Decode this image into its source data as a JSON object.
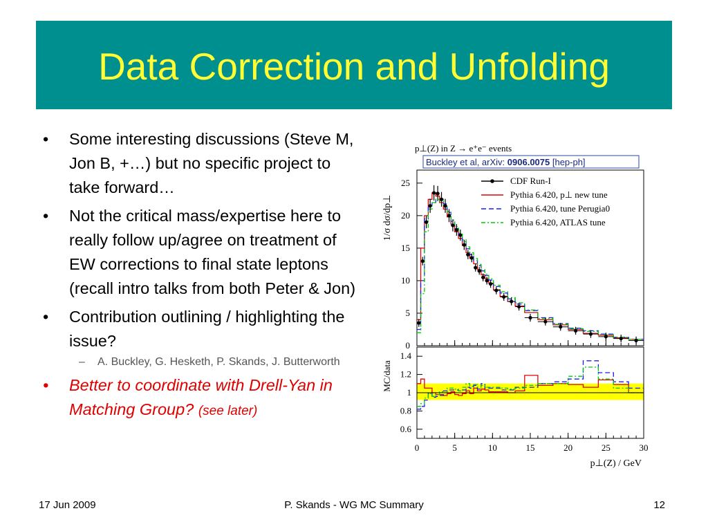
{
  "slide": {
    "title": "Data Correction and Unfolding",
    "bullets": [
      "Some interesting discussions (Steve M, Jon B, +…) but no specific project to take forward…",
      "Not the critical mass/expertise here to really follow up/agree on treatment of EW corrections to final state leptons (recall intro talks from both Peter & Jon)",
      "Contribution outlining / highlighting the issue?"
    ],
    "sub_bullet": "A. Buckley, G. Hesketh, P. Skands, J. Butterworth",
    "red_bullet": "Better to coordinate with Drell-Yan in Matching Group?",
    "red_bullet_note": "(see later)",
    "bullet_char": "•",
    "dash_char": "–"
  },
  "footer": {
    "date": "17 Jun 2009",
    "center": "P. Skands - WG MC Summary",
    "page": "12"
  },
  "colors": {
    "title_bg": "#008f8f",
    "title_text": "#ffff33",
    "red_text": "#e00000",
    "uncertainty_band": "#ffff00"
  },
  "chart_data": {
    "type": "line",
    "title": "p⊥(Z) in Z → e⁺e⁻ events",
    "annotation": {
      "prefix": "Buckley et al, arXiv: ",
      "bold": "0906.0075",
      "suffix": " [hep-ph]"
    },
    "xlabel": "p⊥(Z) / GeV",
    "ylabel_top": "1/σ dσ/dp⊥",
    "ylabel_bottom": "MC/data",
    "xlim": [
      0,
      30
    ],
    "ylim_top": [
      0,
      27
    ],
    "ylim_bottom": [
      0.5,
      1.5
    ],
    "x_ticks": [
      "0",
      "5",
      "10",
      "15",
      "20",
      "25",
      "30"
    ],
    "y_ticks_top": [
      "0",
      "5",
      "10",
      "15",
      "20",
      "25"
    ],
    "y_ticks_bottom": [
      "0.6",
      "0.8",
      "1",
      "1.2",
      "1.4"
    ],
    "legend": [
      "CDF Run-I",
      "Pythia 6.420, p⊥ new tune",
      "Pythia 6.420, tune Perugia0",
      "Pythia 6.420, ATLAS tune"
    ],
    "legend_position": "top-right",
    "x": [
      0.25,
      0.75,
      1.25,
      1.75,
      2.25,
      2.75,
      3.25,
      3.75,
      4.25,
      4.75,
      5.25,
      5.75,
      6.25,
      6.75,
      7.25,
      7.75,
      8.25,
      8.75,
      9.25,
      9.75,
      10.5,
      11.5,
      12.5,
      13.5,
      15,
      17,
      19,
      21,
      23,
      25,
      27,
      29
    ],
    "series": [
      {
        "name": "CDF Run-I",
        "color": "#000000",
        "style": "points",
        "values": [
          3.5,
          13.0,
          19.0,
          21.5,
          23.5,
          23.4,
          22.5,
          21.5,
          20.0,
          18.5,
          17.8,
          17.0,
          15.5,
          14.0,
          13.5,
          12.0,
          11.5,
          10.5,
          10.0,
          9.5,
          8.5,
          7.5,
          6.8,
          6.0,
          4.3,
          3.7,
          2.9,
          2.3,
          1.8,
          1.4,
          1.1,
          0.8
        ]
      },
      {
        "name": "Pythia 6.420, p⊥ new tune",
        "color": "#e00000",
        "style": "solid",
        "values": [
          4.0,
          15.0,
          20.0,
          22.5,
          23.5,
          23.0,
          22.0,
          21.0,
          19.8,
          18.7,
          17.5,
          16.5,
          15.4,
          14.3,
          13.4,
          12.6,
          11.7,
          10.9,
          10.3,
          9.6,
          8.6,
          7.6,
          6.8,
          6.1,
          5.1,
          4.0,
          3.2,
          2.5,
          1.9,
          1.6,
          1.2,
          1.0
        ],
        "ratio": [
          1.1,
          1.15,
          1.05,
          1.05,
          1.0,
          0.98,
          0.98,
          0.97,
          0.99,
          1.01,
          0.98,
          0.97,
          0.99,
          1.02,
          0.99,
          1.05,
          1.02,
          1.04,
          1.03,
          1.01,
          1.01,
          1.01,
          1.0,
          1.02,
          1.19,
          1.08,
          1.1,
          1.09,
          1.06,
          1.14,
          1.09,
          1.0
        ]
      },
      {
        "name": "Pythia 6.420, tune Perugia0",
        "color": "#1a1aff",
        "style": "dashed",
        "values": [
          2.5,
          10.0,
          19.5,
          21.5,
          22.0,
          22.5,
          22.5,
          21.8,
          20.5,
          19.1,
          18.0,
          17.0,
          16.0,
          14.9,
          14.0,
          13.1,
          12.3,
          11.5,
          10.8,
          10.1,
          9.1,
          8.1,
          7.2,
          6.4,
          5.4,
          4.3,
          3.4,
          2.7,
          2.3,
          1.8,
          1.3,
          1.0
        ],
        "ratio": [
          0.82,
          0.85,
          0.92,
          1.0,
          0.95,
          0.96,
          0.97,
          1.02,
          1.03,
          1.03,
          1.03,
          1.02,
          1.03,
          1.06,
          1.05,
          1.08,
          1.04,
          1.1,
          1.05,
          1.05,
          1.05,
          1.03,
          1.03,
          1.06,
          1.06,
          1.1,
          1.12,
          1.15,
          1.35,
          1.22,
          1.12,
          1.05
        ]
      },
      {
        "name": "Pythia 6.420, ATLAS tune",
        "color": "#00cc00",
        "style": "dashdot",
        "values": [
          2.0,
          8.0,
          17.5,
          21.0,
          22.0,
          22.5,
          22.3,
          21.6,
          20.6,
          19.3,
          18.3,
          17.3,
          16.3,
          15.2,
          14.3,
          13.4,
          12.5,
          11.7,
          11.0,
          10.3,
          9.3,
          8.3,
          7.4,
          6.6,
          5.5,
          4.2,
          3.3,
          2.6,
          2.2,
          1.7,
          1.3,
          1.0
        ],
        "ratio": [
          0.85,
          0.88,
          0.94,
          0.99,
          0.96,
          0.98,
          1.01,
          1.0,
          1.05,
          1.05,
          1.04,
          1.02,
          1.06,
          1.1,
          1.07,
          1.09,
          1.06,
          1.08,
          1.06,
          1.06,
          1.06,
          1.05,
          1.04,
          1.05,
          1.08,
          1.1,
          1.1,
          1.18,
          1.28,
          1.15,
          1.05,
          1.0
        ]
      }
    ],
    "band": {
      "lower": 0.92,
      "upper": 1.1,
      "color": "#ffff00"
    }
  }
}
